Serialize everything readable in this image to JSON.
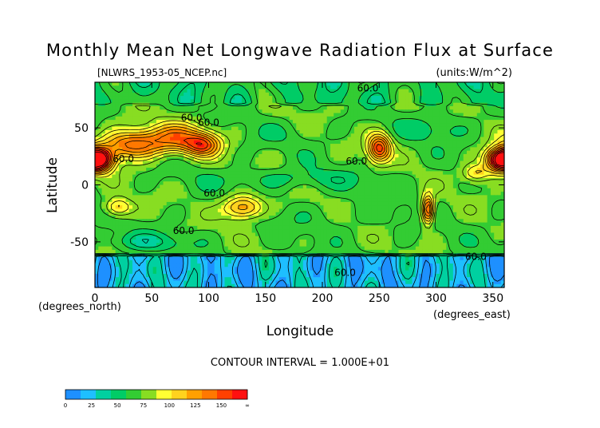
{
  "chart_data": {
    "type": "heatmap",
    "title": "Monthly Mean Net Longwave Radiation Flux at Surface",
    "subtitle_left": "[NLWRS_1953-05_NCEP.nc]",
    "subtitle_right": "(units:W/m^2)",
    "xlabel": "Longitude",
    "ylabel": "Latitude",
    "x_units": "(degrees_east)",
    "y_units": "(degrees_north)",
    "xlim": [
      0,
      360
    ],
    "ylim": [
      -90,
      90
    ],
    "x_ticks": [
      0,
      50,
      100,
      150,
      200,
      250,
      300,
      350
    ],
    "y_ticks": [
      -50,
      0,
      50
    ],
    "contour_interval_text": "CONTOUR INTERVAL = 1.000E+01",
    "contour_labels": [
      {
        "text": "60.0",
        "lon": 240,
        "lat": 82
      },
      {
        "text": "60.0",
        "lon": 85,
        "lat": 56
      },
      {
        "text": "60.0",
        "lon": 100,
        "lat": 52
      },
      {
        "text": "60.0",
        "lon": 25,
        "lat": 20
      },
      {
        "text": "60.0",
        "lon": 230,
        "lat": 18
      },
      {
        "text": "60.0",
        "lon": 105,
        "lat": -10
      },
      {
        "text": "60.0",
        "lon": 78,
        "lat": -43
      },
      {
        "text": "60.0",
        "lon": 335,
        "lat": -66
      },
      {
        "text": "60.0",
        "lon": 220,
        "lat": -80
      }
    ],
    "colorbar": {
      "ticks": [
        "0",
        "25",
        "50",
        "75",
        "100",
        "125",
        "150",
        "∞"
      ],
      "colors": [
        "#1e90ff",
        "#1ebfff",
        "#00d0a0",
        "#00cc66",
        "#33cc33",
        "#88dd22",
        "#ffff33",
        "#ffd21e",
        "#ffa000",
        "#ff7800",
        "#ff4000",
        "#ff1010"
      ]
    },
    "blobs": [
      {
        "lon": 5,
        "lat": 22,
        "v": 150,
        "rx": 12,
        "ry": 10
      },
      {
        "lon": 355,
        "lat": 22,
        "v": 150,
        "rx": 12,
        "ry": 10
      },
      {
        "lon": 30,
        "lat": 35,
        "v": 120,
        "rx": 25,
        "ry": 12
      },
      {
        "lon": 70,
        "lat": 40,
        "v": 115,
        "rx": 30,
        "ry": 13
      },
      {
        "lon": 95,
        "lat": 35,
        "v": 110,
        "rx": 15,
        "ry": 10
      },
      {
        "lon": 250,
        "lat": 32,
        "v": 135,
        "rx": 10,
        "ry": 12
      },
      {
        "lon": 130,
        "lat": -20,
        "v": 115,
        "rx": 17,
        "ry": 10
      },
      {
        "lon": 20,
        "lat": -20,
        "v": 100,
        "rx": 12,
        "ry": 8
      },
      {
        "lon": 293,
        "lat": -22,
        "v": 140,
        "rx": 5,
        "ry": 12
      },
      {
        "lon": 335,
        "lat": 10,
        "v": 95,
        "rx": 12,
        "ry": 8
      },
      {
        "lon": 175,
        "lat": 5,
        "v": 45,
        "rx": 70,
        "ry": 9
      },
      {
        "lon": 300,
        "lat": 50,
        "v": 45,
        "rx": 30,
        "ry": 12
      },
      {
        "lon": 160,
        "lat": 45,
        "v": 55,
        "rx": 40,
        "ry": 10
      },
      {
        "lon": 200,
        "lat": -30,
        "v": 55,
        "rx": 60,
        "ry": 12
      },
      {
        "lon": 45,
        "lat": -50,
        "v": 40,
        "rx": 40,
        "ry": 8
      }
    ]
  }
}
